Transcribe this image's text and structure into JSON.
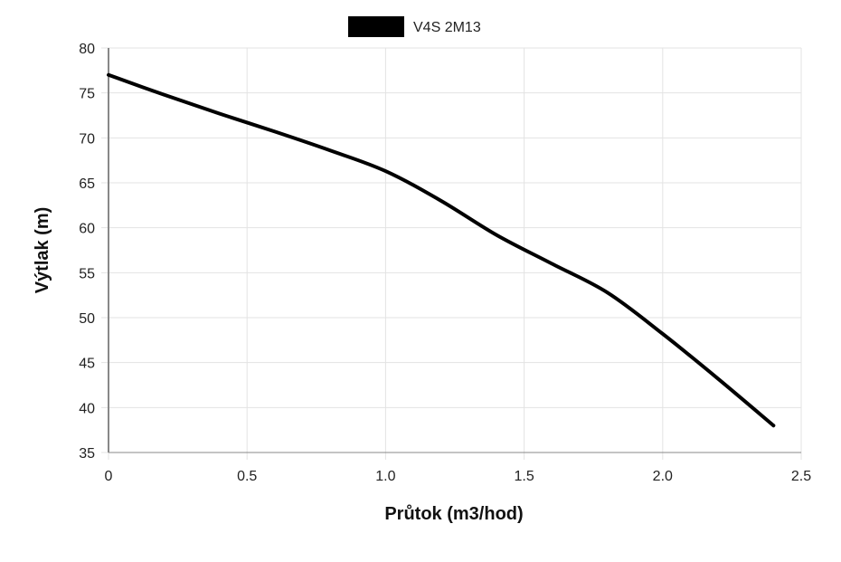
{
  "chart_data": {
    "type": "line",
    "title": "",
    "xlabel": "Průtok (m3/hod)",
    "ylabel": "Výtlak (m)",
    "xlim": [
      0,
      2.5
    ],
    "ylim": [
      35,
      80
    ],
    "x_ticks": [
      "0",
      "0.5",
      "1.0",
      "1.5",
      "2.0",
      "2.5"
    ],
    "y_ticks": [
      "35",
      "40",
      "45",
      "50",
      "55",
      "60",
      "65",
      "70",
      "75",
      "80"
    ],
    "grid": true,
    "legend_position": "top-center",
    "series": [
      {
        "name": "V4S 2M13",
        "color": "#000000",
        "x": [
          0,
          0.2,
          0.4,
          0.6,
          0.8,
          1.0,
          1.2,
          1.4,
          1.6,
          1.8,
          2.0,
          2.2,
          2.4
        ],
        "y": [
          77,
          74.8,
          72.7,
          70.7,
          68.6,
          66.3,
          63,
          59.2,
          56,
          52.8,
          48.2,
          43.2,
          38
        ]
      }
    ]
  }
}
